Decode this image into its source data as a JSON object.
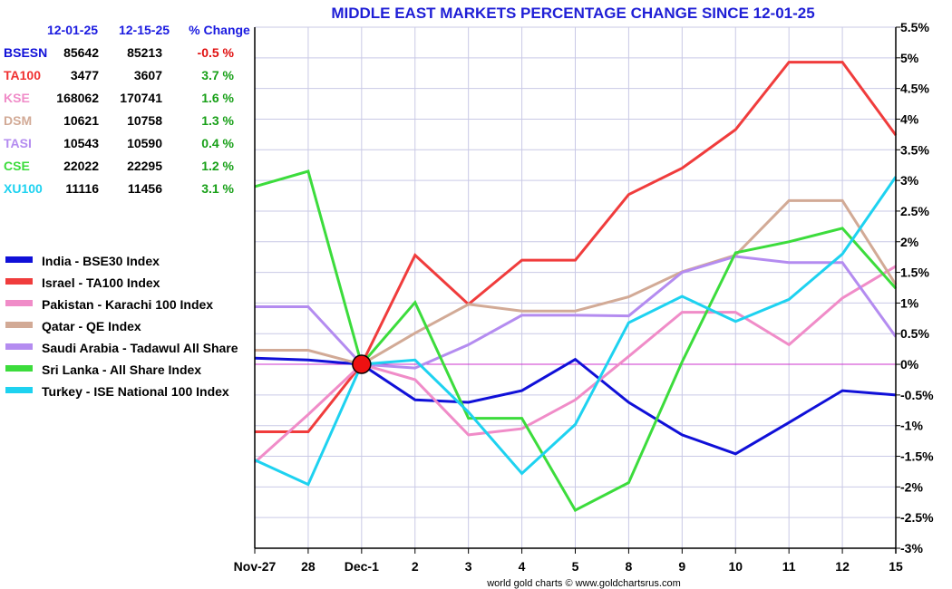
{
  "chart_data": {
    "type": "line",
    "title": "MIDDLE EAST MARKETS PERCENTAGE CHANGE SINCE 12-01-25",
    "credit": "world gold charts © www.goldchartsrus.com",
    "categories": [
      "Nov-27",
      "28",
      "Dec-1",
      "2",
      "3",
      "4",
      "5",
      "8",
      "9",
      "10",
      "11",
      "12",
      "15"
    ],
    "ylim": [
      -3,
      5.5
    ],
    "yticks": [
      -3,
      -2.5,
      -2,
      -1.5,
      -1,
      -0.5,
      0,
      0.5,
      1,
      1.5,
      2,
      2.5,
      3,
      3.5,
      4,
      4.5,
      5,
      5.5
    ],
    "ytick_labels": [
      "-3%",
      "-2.5%",
      "-2%",
      "-1.5%",
      "-1%",
      "-0.5%",
      "0%",
      "0.5%",
      "1%",
      "1.5%",
      "2%",
      "2.5%",
      "3%",
      "3.5%",
      "4%",
      "4.5%",
      "5%",
      "5.5%"
    ],
    "grid": true,
    "baseline_marker": {
      "category": "Dec-1",
      "value": 0,
      "color": "#ee1111"
    },
    "zero_line_color": "#cc33cc",
    "table": {
      "headers": [
        "12-01-25",
        "12-15-25",
        "% Change"
      ],
      "rows": [
        {
          "symbol": "BSESN",
          "start": "85642",
          "end": "85213",
          "change": "-0.5 %",
          "symbol_color": "#1010d8",
          "change_color": "#e01010"
        },
        {
          "symbol": "TA100",
          "start": "3477",
          "end": "3607",
          "change": "3.7 %",
          "symbol_color": "#f03030",
          "change_color": "#18a018"
        },
        {
          "symbol": "KSE",
          "start": "168062",
          "end": "170741",
          "change": "1.6 %",
          "symbol_color": "#f08cc8",
          "change_color": "#18a018"
        },
        {
          "symbol": "DSM",
          "start": "10621",
          "end": "10758",
          "change": "1.3 %",
          "symbol_color": "#d2aa96",
          "change_color": "#18a018"
        },
        {
          "symbol": "TASI",
          "start": "10543",
          "end": "10590",
          "change": "0.4 %",
          "symbol_color": "#b48cf0",
          "change_color": "#18a018"
        },
        {
          "symbol": "CSE",
          "start": "22022",
          "end": "22295",
          "change": "1.2 %",
          "symbol_color": "#3cdc3c",
          "change_color": "#18a018"
        },
        {
          "symbol": "XU100",
          "start": "11116",
          "end": "11456",
          "change": "3.1 %",
          "symbol_color": "#1ed2f0",
          "change_color": "#18a018"
        }
      ]
    },
    "legend_position": "left",
    "series": [
      {
        "name": "India - BSE30 Index",
        "color": "#1010d8",
        "values": [
          0.1,
          0.07,
          0,
          -0.58,
          -0.62,
          -0.43,
          0.08,
          -0.62,
          -1.15,
          -1.46,
          -0.95,
          -0.43,
          -0.5
        ]
      },
      {
        "name": "Israel - TA100 Index",
        "color": "#f03c3c",
        "values": [
          -1.1,
          -1.1,
          0,
          1.78,
          0.98,
          1.7,
          1.7,
          2.77,
          3.2,
          3.83,
          4.93,
          4.93,
          3.74
        ]
      },
      {
        "name": "Pakistan - Karachi 100 Index",
        "color": "#f08cc8",
        "values": [
          -1.6,
          -0.82,
          0,
          -0.25,
          -1.15,
          -1.05,
          -0.58,
          0.13,
          0.85,
          0.85,
          0.32,
          1.08,
          1.6
        ]
      },
      {
        "name": "Qatar - QE Index",
        "color": "#d2aa96",
        "values": [
          0.23,
          0.23,
          0,
          0.51,
          0.98,
          0.87,
          0.87,
          1.1,
          1.51,
          1.78,
          2.67,
          2.67,
          1.3
        ]
      },
      {
        "name": "Saudi Arabia - Tadawul All Share",
        "color": "#b48cf0",
        "values": [
          0.94,
          0.94,
          0,
          -0.06,
          0.32,
          0.8,
          0.8,
          0.79,
          1.5,
          1.76,
          1.66,
          1.66,
          0.45
        ]
      },
      {
        "name": "Sri Lanka - All Share Index",
        "color": "#3cdc3c",
        "values": [
          2.9,
          3.15,
          0,
          1.01,
          -0.88,
          -0.88,
          -2.38,
          -1.93,
          0.04,
          1.82,
          2.0,
          2.22,
          1.24
        ]
      },
      {
        "name": "Turkey - ISE National 100 Index",
        "color": "#1ed2f0",
        "values": [
          -1.56,
          -1.96,
          0,
          0.07,
          -0.78,
          -1.78,
          -0.98,
          0.68,
          1.11,
          0.7,
          1.06,
          1.8,
          3.06
        ]
      }
    ]
  }
}
